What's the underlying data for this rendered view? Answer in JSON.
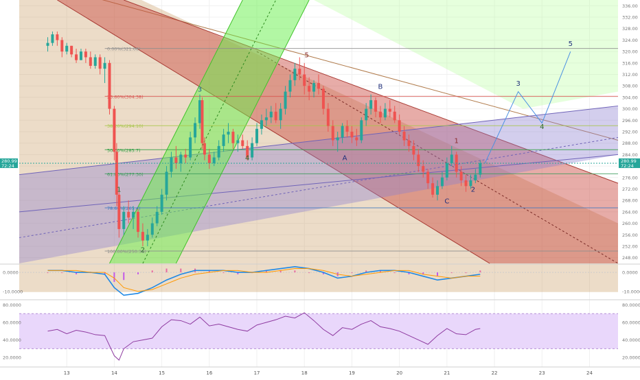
{
  "chart_data": [
    {
      "type": "candlestick",
      "panel": "price",
      "x_ticks": [
        "13",
        "14",
        "15",
        "16",
        "17",
        "18",
        "19",
        "20",
        "21",
        "22",
        "23",
        "24"
      ],
      "y_ticks": [
        248,
        252,
        256,
        260,
        264,
        268,
        272,
        276,
        280,
        284,
        288,
        292,
        296,
        300,
        304,
        308,
        312,
        316,
        320,
        324,
        328,
        332,
        336
      ],
      "ylim": [
        246,
        338
      ],
      "price_label": {
        "price": "280.99",
        "countdown": "72:24"
      },
      "ohlc": [
        [
          12.6,
          322,
          325,
          320,
          323
        ],
        [
          12.7,
          323,
          327,
          322,
          326
        ],
        [
          12.8,
          326,
          327,
          322,
          324
        ],
        [
          12.9,
          324,
          325,
          318,
          320
        ],
        [
          13.0,
          320,
          323,
          319,
          322
        ],
        [
          13.1,
          322,
          322,
          318,
          319
        ],
        [
          13.2,
          319,
          321,
          316,
          317
        ],
        [
          13.3,
          317,
          321,
          317,
          320
        ],
        [
          13.4,
          320,
          321,
          316,
          318
        ],
        [
          13.5,
          318,
          320,
          314,
          315
        ],
        [
          13.6,
          315,
          319,
          314,
          318
        ],
        [
          13.7,
          318,
          319,
          312,
          314
        ],
        [
          13.8,
          314,
          318,
          309,
          316
        ],
        [
          13.9,
          316,
          317,
          298,
          300
        ],
        [
          14.0,
          300,
          301,
          282,
          285
        ],
        [
          14.05,
          285,
          288,
          266,
          270
        ],
        [
          14.1,
          270,
          272,
          255,
          258
        ],
        [
          14.2,
          258,
          266,
          256,
          264
        ],
        [
          14.3,
          264,
          268,
          260,
          262
        ],
        [
          14.4,
          262,
          266,
          258,
          264
        ],
        [
          14.5,
          264,
          265,
          255,
          257
        ],
        [
          14.6,
          257,
          260,
          252,
          254
        ],
        [
          14.7,
          254,
          258,
          252,
          256
        ],
        [
          14.8,
          256,
          262,
          255,
          260
        ],
        [
          14.9,
          260,
          266,
          259,
          264
        ],
        [
          15.0,
          264,
          272,
          263,
          270
        ],
        [
          15.1,
          270,
          280,
          268,
          278
        ],
        [
          15.2,
          278,
          285,
          276,
          283
        ],
        [
          15.3,
          283,
          287,
          279,
          281
        ],
        [
          15.4,
          281,
          285,
          278,
          284
        ],
        [
          15.5,
          284,
          286,
          281,
          283
        ],
        [
          15.6,
          283,
          292,
          282,
          290
        ],
        [
          15.7,
          290,
          297,
          288,
          295
        ],
        [
          15.8,
          295,
          305,
          293,
          303
        ],
        [
          15.85,
          303,
          304,
          286,
          288
        ],
        [
          15.9,
          288,
          290,
          282,
          284
        ],
        [
          16.0,
          284,
          286,
          279,
          281
        ],
        [
          16.1,
          281,
          285,
          280,
          283
        ],
        [
          16.2,
          283,
          289,
          282,
          287
        ],
        [
          16.3,
          287,
          293,
          285,
          291
        ],
        [
          16.4,
          291,
          295,
          288,
          292
        ],
        [
          16.5,
          292,
          293,
          286,
          288
        ],
        [
          16.6,
          288,
          291,
          285,
          289
        ],
        [
          16.7,
          289,
          291,
          286,
          287
        ],
        [
          16.8,
          287,
          289,
          282,
          283
        ],
        [
          16.9,
          283,
          290,
          282,
          288
        ],
        [
          17.0,
          288,
          295,
          287,
          293
        ],
        [
          17.1,
          293,
          298,
          291,
          296
        ],
        [
          17.2,
          296,
          300,
          294,
          297
        ],
        [
          17.3,
          297,
          301,
          295,
          299
        ],
        [
          17.4,
          299,
          302,
          295,
          296
        ],
        [
          17.5,
          296,
          302,
          293,
          300
        ],
        [
          17.6,
          300,
          308,
          298,
          306
        ],
        [
          17.7,
          306,
          312,
          304,
          310
        ],
        [
          17.8,
          310,
          316,
          308,
          314
        ],
        [
          17.9,
          314,
          318,
          310,
          312
        ],
        [
          18.0,
          312,
          316,
          305,
          308
        ],
        [
          18.1,
          308,
          311,
          303,
          306
        ],
        [
          18.2,
          306,
          310,
          304,
          309
        ],
        [
          18.3,
          309,
          312,
          305,
          307
        ],
        [
          18.4,
          307,
          308,
          298,
          300
        ],
        [
          18.5,
          300,
          302,
          292,
          294
        ],
        [
          18.6,
          294,
          296,
          287,
          289
        ],
        [
          18.7,
          289,
          292,
          285,
          290
        ],
        [
          18.8,
          290,
          295,
          288,
          294
        ],
        [
          18.9,
          294,
          296,
          290,
          292
        ],
        [
          19.0,
          292,
          294,
          288,
          290
        ],
        [
          19.1,
          290,
          293,
          287,
          289
        ],
        [
          19.2,
          289,
          297,
          288,
          296
        ],
        [
          19.3,
          296,
          302,
          294,
          300
        ],
        [
          19.4,
          300,
          305,
          298,
          303
        ],
        [
          19.5,
          303,
          304,
          297,
          299
        ],
        [
          19.6,
          299,
          301,
          295,
          297
        ],
        [
          19.7,
          297,
          302,
          296,
          300
        ],
        [
          19.8,
          300,
          303,
          297,
          299
        ],
        [
          19.9,
          299,
          301,
          295,
          296
        ],
        [
          20.0,
          296,
          298,
          291,
          292
        ],
        [
          20.1,
          292,
          294,
          287,
          289
        ],
        [
          20.2,
          289,
          291,
          285,
          287
        ],
        [
          20.3,
          287,
          289,
          282,
          284
        ],
        [
          20.4,
          284,
          286,
          278,
          280
        ],
        [
          20.5,
          280,
          282,
          276,
          278
        ],
        [
          20.6,
          278,
          279,
          272,
          274
        ],
        [
          20.7,
          274,
          276,
          269,
          270
        ],
        [
          20.8,
          270,
          275,
          268,
          273
        ],
        [
          20.9,
          273,
          278,
          272,
          276
        ],
        [
          21.0,
          276,
          283,
          275,
          281
        ],
        [
          21.1,
          281,
          287,
          280,
          284
        ],
        [
          21.2,
          284,
          285,
          276,
          278
        ],
        [
          21.3,
          278,
          280,
          273,
          275
        ],
        [
          21.4,
          275,
          277,
          271,
          273
        ],
        [
          21.5,
          273,
          277,
          272,
          275
        ],
        [
          21.6,
          275,
          279,
          274,
          277
        ],
        [
          21.7,
          277,
          282,
          276,
          281
        ]
      ],
      "annotations": [
        "1",
        "2",
        "3",
        "4",
        "5",
        "A",
        "B",
        "C",
        "1",
        "2",
        "3",
        "4",
        "5"
      ],
      "fib_levels": [
        {
          "label": "0.00%(321.08)",
          "value": 321.08
        },
        {
          "label": "23.60%(304.38)",
          "value": 304.38
        },
        {
          "label": "38.20%(294.10)",
          "value": 294.1
        },
        {
          "label": "50.00%(285.7)",
          "value": 285.7
        },
        {
          "label": "61.80%(277.30)",
          "value": 277.3
        },
        {
          "label": "78.60%(265.4)",
          "value": 265.4
        },
        {
          "label": "100.00%(250.31)",
          "value": 250.31
        }
      ],
      "colors": {
        "up": "#26a69a",
        "down": "#ef5350",
        "green_band": "#7cff5a",
        "red_band": "#d9534f",
        "purple_band": "#9b8fd6",
        "forecast": "#4a90e2"
      }
    },
    {
      "type": "line",
      "panel": "macd",
      "y_ticks": [
        "0.0000",
        "-10.0000"
      ],
      "ylim": [
        -14,
        4
      ],
      "x": [
        12.6,
        12.9,
        13.2,
        13.5,
        13.8,
        14.0,
        14.2,
        14.5,
        14.8,
        15.1,
        15.4,
        15.7,
        16.0,
        16.3,
        16.6,
        16.9,
        17.2,
        17.5,
        17.8,
        18.1,
        18.4,
        18.7,
        19.0,
        19.3,
        19.6,
        19.9,
        20.2,
        20.5,
        20.8,
        21.1,
        21.4,
        21.7
      ],
      "series": [
        {
          "values": [
            1,
            1,
            0,
            0,
            -1,
            -8,
            -12,
            -11,
            -8,
            -4,
            -1,
            1,
            1,
            1,
            0,
            0,
            1,
            2,
            3,
            2,
            0,
            -3,
            -2,
            0,
            1,
            1,
            0,
            -2,
            -4,
            -3,
            -2,
            -1
          ]
        },
        {
          "values": [
            1,
            1,
            1,
            0,
            0,
            -3,
            -8,
            -10,
            -9,
            -6,
            -3,
            -1,
            0,
            1,
            1,
            0,
            0,
            1,
            2,
            2,
            1,
            -1,
            -2,
            -1,
            0,
            1,
            1,
            -1,
            -2,
            -3,
            -2,
            -2
          ]
        }
      ]
    },
    {
      "type": "line",
      "panel": "rsi",
      "y_ticks": [
        "80.0000",
        "60.0000",
        "40.0000",
        "20.0000"
      ],
      "ylim": [
        10,
        85
      ],
      "band": [
        30,
        70
      ],
      "x": [
        12.6,
        12.8,
        13.0,
        13.2,
        13.4,
        13.6,
        13.8,
        14.0,
        14.1,
        14.2,
        14.4,
        14.6,
        14.8,
        15.0,
        15.2,
        15.4,
        15.6,
        15.8,
        16.0,
        16.2,
        16.4,
        16.6,
        16.8,
        17.0,
        17.2,
        17.4,
        17.6,
        17.8,
        18.0,
        18.2,
        18.4,
        18.6,
        18.8,
        19.0,
        19.2,
        19.4,
        19.6,
        19.8,
        20.0,
        20.2,
        20.4,
        20.6,
        20.8,
        21.0,
        21.2,
        21.4,
        21.6,
        21.7
      ],
      "values": [
        50,
        52,
        47,
        51,
        49,
        46,
        45,
        22,
        17,
        30,
        38,
        40,
        42,
        55,
        63,
        62,
        58,
        66,
        56,
        58,
        55,
        52,
        50,
        57,
        60,
        63,
        67,
        65,
        71,
        62,
        52,
        45,
        54,
        52,
        58,
        62,
        55,
        53,
        50,
        45,
        40,
        35,
        45,
        53,
        47,
        46,
        52,
        53
      ]
    }
  ]
}
